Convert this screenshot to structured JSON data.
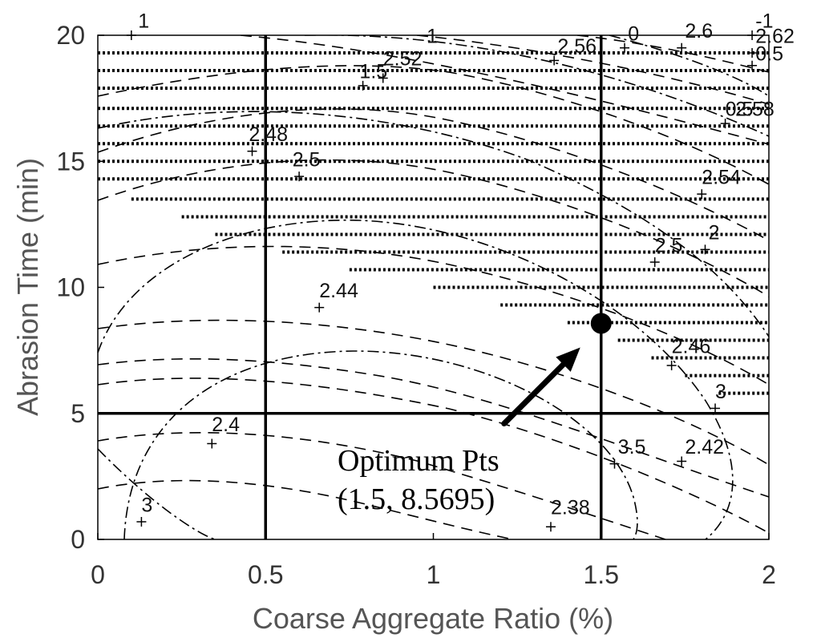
{
  "chart_data": {
    "type": "contour",
    "xlabel": "Coarse Aggregate Ratio (%)",
    "ylabel": "Abrasion Time (min)",
    "xlim": [
      0,
      2
    ],
    "ylim": [
      0,
      20
    ],
    "xticks": [
      0,
      0.5,
      1,
      1.5,
      2
    ],
    "xtick_labels": [
      "0",
      "0.5",
      "1",
      "1.5",
      "2"
    ],
    "yticks": [
      0,
      5,
      10,
      15,
      20
    ],
    "ytick_labels": [
      "0",
      "5",
      "10",
      "15",
      "20"
    ],
    "grid": false,
    "constraint_lines": {
      "vertical_x": [
        0.5,
        1.5
      ],
      "horizontal_y": [
        5
      ]
    },
    "optimum": {
      "x": 1.5,
      "y": 8.5695,
      "label_line1": "Optimum Pts",
      "label_line2": "(1.5, 8.5695)"
    },
    "contour_labels": [
      {
        "text": "1",
        "x": 0.12,
        "y": 20.3
      },
      {
        "text": "1",
        "x": 0.98,
        "y": 19.7
      },
      {
        "text": "1.5",
        "x": 0.78,
        "y": 18.3
      },
      {
        "text": "2.52",
        "x": 0.85,
        "y": 18.8
      },
      {
        "text": "2.56",
        "x": 1.37,
        "y": 19.3
      },
      {
        "text": "0",
        "x": 1.58,
        "y": 19.8
      },
      {
        "text": "2.6",
        "x": 1.75,
        "y": 19.9
      },
      {
        "text": "-1",
        "x": 1.96,
        "y": 20.3
      },
      {
        "text": "2.62",
        "x": 1.96,
        "y": 19.7
      },
      {
        "text": "0.5",
        "x": 1.96,
        "y": 19.0
      },
      {
        "text": "0.5",
        "x": 1.87,
        "y": 16.8
      },
      {
        "text": "2.58",
        "x": 1.9,
        "y": 16.8
      },
      {
        "text": "2.48",
        "x": 0.45,
        "y": 15.8
      },
      {
        "text": "2.5",
        "x": 0.58,
        "y": 14.8
      },
      {
        "text": "2.54",
        "x": 1.8,
        "y": 14.1
      },
      {
        "text": "2",
        "x": 1.82,
        "y": 11.9
      },
      {
        "text": "2.5",
        "x": 1.66,
        "y": 11.4
      },
      {
        "text": "2.44",
        "x": 0.66,
        "y": 9.6
      },
      {
        "text": "2.46",
        "x": 1.71,
        "y": 7.4
      },
      {
        "text": "3",
        "x": 1.84,
        "y": 5.6
      },
      {
        "text": "2.4",
        "x": 0.34,
        "y": 4.3
      },
      {
        "text": "3.5",
        "x": 1.55,
        "y": 3.4
      },
      {
        "text": "2.42",
        "x": 1.75,
        "y": 3.4
      },
      {
        "text": "3",
        "x": 0.13,
        "y": 1.1
      },
      {
        "text": "2.38",
        "x": 1.35,
        "y": 1.0
      }
    ],
    "label_markers": [
      [
        0.1,
        20
      ],
      [
        0.79,
        18
      ],
      [
        0.85,
        18.3
      ],
      [
        1.36,
        19
      ],
      [
        1.57,
        19.5
      ],
      [
        1.74,
        19.5
      ],
      [
        1.95,
        20
      ],
      [
        1.95,
        19.3
      ],
      [
        1.95,
        18.8
      ],
      [
        1.87,
        16.5
      ],
      [
        0.46,
        15.4
      ],
      [
        0.6,
        14.4
      ],
      [
        1.8,
        13.7
      ],
      [
        1.81,
        11.5
      ],
      [
        1.66,
        11
      ],
      [
        0.66,
        9.2
      ],
      [
        1.71,
        6.9
      ],
      [
        1.84,
        5.2
      ],
      [
        0.34,
        3.8
      ],
      [
        1.54,
        3
      ],
      [
        1.74,
        3.1
      ],
      [
        0.13,
        0.7
      ],
      [
        1.35,
        0.5
      ]
    ],
    "infeasible_region": "hatched"
  }
}
